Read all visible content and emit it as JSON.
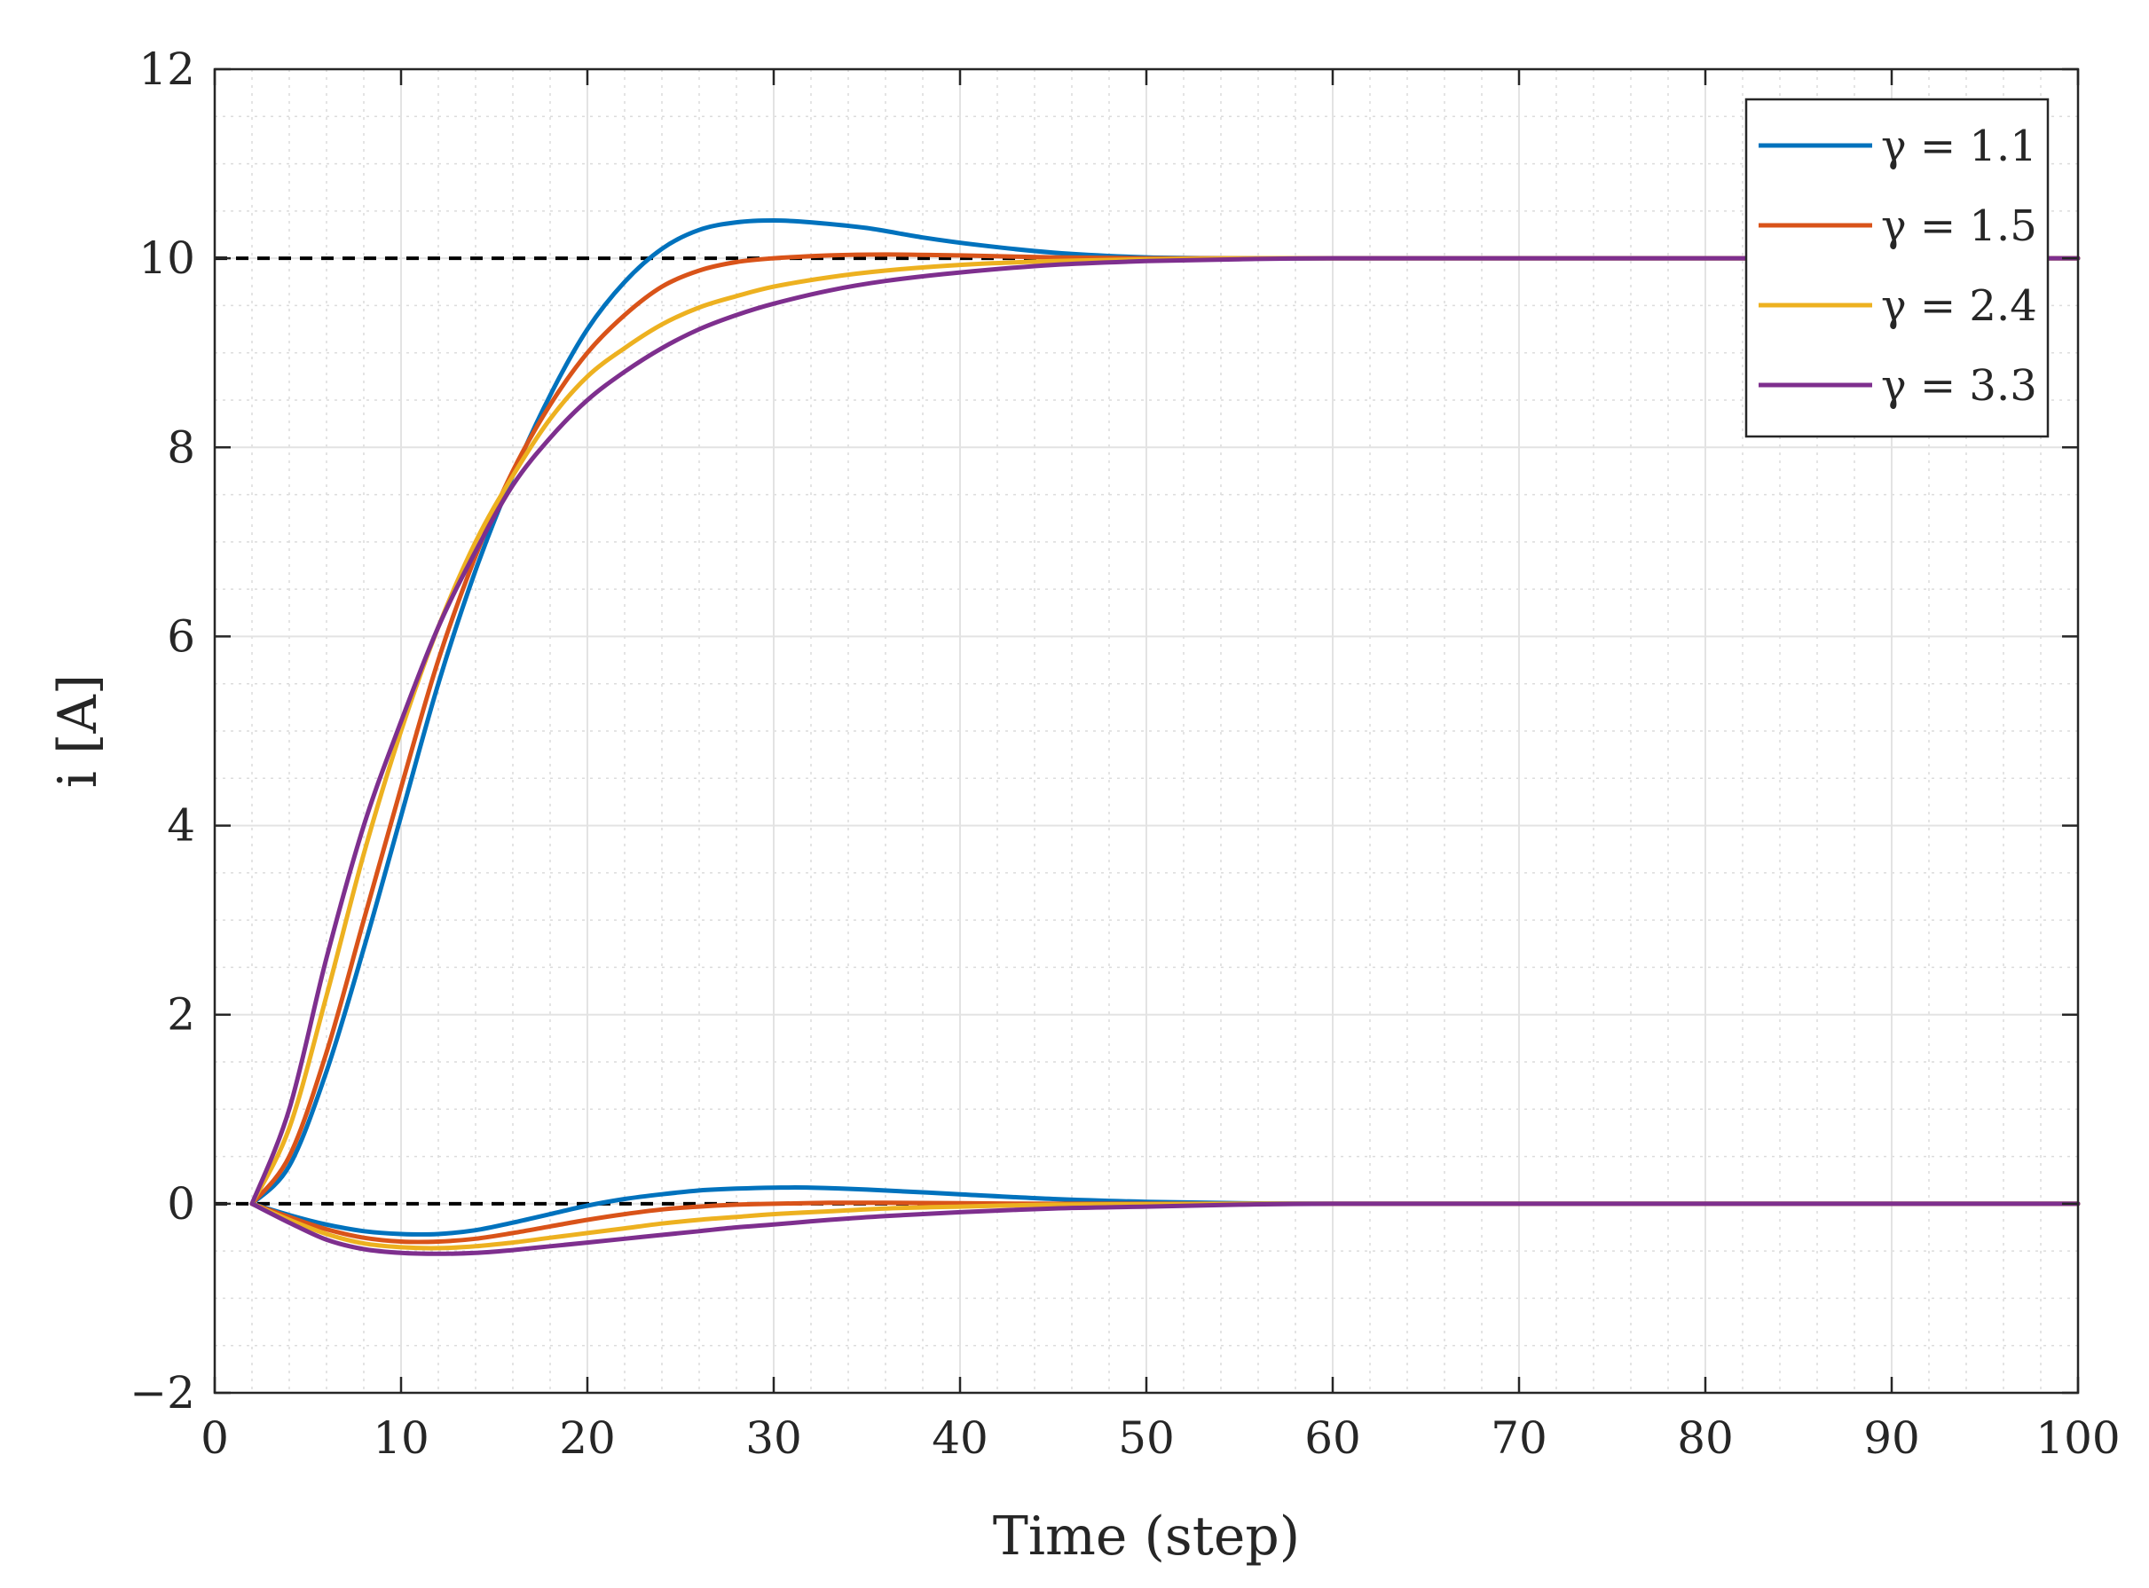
{
  "chart_data": {
    "type": "line",
    "xlabel": "Time (step)",
    "ylabel": "i [A]",
    "xlim": [
      0,
      100
    ],
    "ylim": [
      -2,
      12
    ],
    "xticks": [
      0,
      10,
      20,
      30,
      40,
      50,
      60,
      70,
      80,
      90,
      100
    ],
    "xtick_labels": [
      "0",
      "10",
      "20",
      "30",
      "40",
      "50",
      "60",
      "70",
      "80",
      "90",
      "100"
    ],
    "yticks": [
      -2,
      0,
      2,
      4,
      6,
      8,
      10,
      12
    ],
    "ytick_labels": [
      "−2",
      "0",
      "2",
      "4",
      "6",
      "8",
      "10",
      "12"
    ],
    "grid": true,
    "minor_grid": true,
    "legend_position": "top-right",
    "reference_lines": [
      {
        "y": 10,
        "style": "dashed",
        "color": "#000000"
      },
      {
        "y": 0,
        "style": "dashed",
        "color": "#000000"
      }
    ],
    "series": [
      {
        "name": "γ = 1.1",
        "color": "#0072BD",
        "x": [
          2,
          4,
          6,
          8,
          10,
          12,
          14,
          16,
          18,
          20,
          22,
          24,
          26,
          28,
          30,
          32,
          35,
          38,
          41,
          45,
          50,
          55,
          60,
          70,
          80,
          90,
          100
        ],
        "y": [
          0,
          0.4,
          1.4,
          2.7,
          4.1,
          5.5,
          6.7,
          7.7,
          8.55,
          9.25,
          9.75,
          10.1,
          10.3,
          10.38,
          10.4,
          10.38,
          10.32,
          10.22,
          10.14,
          10.06,
          10.01,
          10.0,
          10.0,
          10.0,
          10.0,
          10.0,
          10.0
        ]
      },
      {
        "name": "γ = 1.5",
        "color": "#D95319",
        "x": [
          2,
          4,
          6,
          8,
          10,
          12,
          14,
          16,
          18,
          20,
          22,
          24,
          26,
          28,
          30,
          33,
          36,
          40,
          45,
          50,
          55,
          60,
          70,
          80,
          90,
          100
        ],
        "y": [
          0,
          0.5,
          1.6,
          3.0,
          4.4,
          5.75,
          6.85,
          7.75,
          8.45,
          9.0,
          9.4,
          9.7,
          9.87,
          9.96,
          10.0,
          10.03,
          10.04,
          10.03,
          10.01,
          10.0,
          10.0,
          10.0,
          10.0,
          10.0,
          10.0,
          10.0
        ]
      },
      {
        "name": "γ = 2.4",
        "color": "#EDB120",
        "x": [
          2,
          4,
          6,
          8,
          10,
          12,
          14,
          16,
          18,
          20,
          22,
          24,
          26,
          28,
          30,
          33,
          36,
          40,
          45,
          50,
          55,
          60,
          70,
          80,
          90,
          100
        ],
        "y": [
          0,
          0.8,
          2.2,
          3.7,
          5.0,
          6.1,
          7.0,
          7.7,
          8.3,
          8.75,
          9.05,
          9.3,
          9.48,
          9.6,
          9.7,
          9.8,
          9.87,
          9.93,
          9.97,
          9.99,
          10.0,
          10.0,
          10.0,
          10.0,
          10.0,
          10.0
        ]
      },
      {
        "name": "γ = 3.3",
        "color": "#7E2F8E",
        "x": [
          2,
          4,
          6,
          8,
          10,
          12,
          14,
          16,
          18,
          20,
          22,
          24,
          26,
          28,
          30,
          33,
          36,
          40,
          45,
          50,
          55,
          60,
          70,
          80,
          90,
          100
        ],
        "y": [
          0,
          1.0,
          2.6,
          4.0,
          5.1,
          6.1,
          6.9,
          7.6,
          8.1,
          8.5,
          8.8,
          9.05,
          9.25,
          9.4,
          9.52,
          9.66,
          9.76,
          9.85,
          9.93,
          9.97,
          9.99,
          10.0,
          10.0,
          10.0,
          10.0,
          10.0
        ]
      },
      {
        "name": "γ = 1.1 (lower)",
        "color": "#0072BD",
        "in_legend": false,
        "x": [
          2,
          4,
          6,
          8,
          10,
          12,
          14,
          16,
          18,
          20,
          22,
          24,
          26,
          28,
          30,
          32,
          35,
          40,
          45,
          50,
          55,
          60,
          70,
          80,
          90,
          100
        ],
        "y": [
          0,
          -0.12,
          -0.22,
          -0.29,
          -0.32,
          -0.32,
          -0.28,
          -0.2,
          -0.11,
          -0.02,
          0.05,
          0.1,
          0.14,
          0.16,
          0.17,
          0.17,
          0.15,
          0.1,
          0.05,
          0.02,
          0.005,
          0.0,
          0.0,
          0.0,
          0.0,
          0.0
        ]
      },
      {
        "name": "γ = 1.5 (lower)",
        "color": "#D95319",
        "in_legend": false,
        "x": [
          2,
          4,
          6,
          8,
          10,
          12,
          14,
          16,
          18,
          20,
          22,
          24,
          26,
          28,
          30,
          33,
          36,
          40,
          45,
          50,
          55,
          60,
          70,
          80,
          90,
          100
        ],
        "y": [
          0,
          -0.14,
          -0.27,
          -0.36,
          -0.4,
          -0.4,
          -0.37,
          -0.31,
          -0.24,
          -0.17,
          -0.11,
          -0.06,
          -0.03,
          -0.01,
          0.0,
          0.01,
          0.01,
          0.005,
          0.0,
          0.0,
          0.0,
          0.0,
          0.0,
          0.0,
          0.0,
          0.0
        ]
      },
      {
        "name": "γ = 2.4 (lower)",
        "color": "#EDB120",
        "in_legend": false,
        "x": [
          2,
          4,
          6,
          8,
          10,
          12,
          14,
          16,
          18,
          20,
          22,
          24,
          26,
          28,
          30,
          33,
          36,
          40,
          45,
          50,
          55,
          60,
          70,
          80,
          90,
          100
        ],
        "y": [
          0,
          -0.17,
          -0.32,
          -0.42,
          -0.46,
          -0.47,
          -0.45,
          -0.41,
          -0.36,
          -0.31,
          -0.26,
          -0.21,
          -0.17,
          -0.14,
          -0.11,
          -0.08,
          -0.05,
          -0.03,
          -0.01,
          -0.005,
          0.0,
          0.0,
          0.0,
          0.0,
          0.0,
          0.0
        ]
      },
      {
        "name": "γ = 3.3 (lower)",
        "color": "#7E2F8E",
        "in_legend": false,
        "x": [
          2,
          4,
          6,
          8,
          10,
          12,
          14,
          16,
          18,
          20,
          22,
          24,
          26,
          28,
          30,
          33,
          36,
          40,
          45,
          50,
          55,
          60,
          70,
          80,
          90,
          100
        ],
        "y": [
          0,
          -0.2,
          -0.38,
          -0.48,
          -0.52,
          -0.53,
          -0.52,
          -0.49,
          -0.45,
          -0.41,
          -0.37,
          -0.33,
          -0.29,
          -0.25,
          -0.22,
          -0.17,
          -0.13,
          -0.09,
          -0.05,
          -0.03,
          -0.01,
          0.0,
          0.0,
          0.0,
          0.0,
          0.0
        ]
      }
    ]
  }
}
